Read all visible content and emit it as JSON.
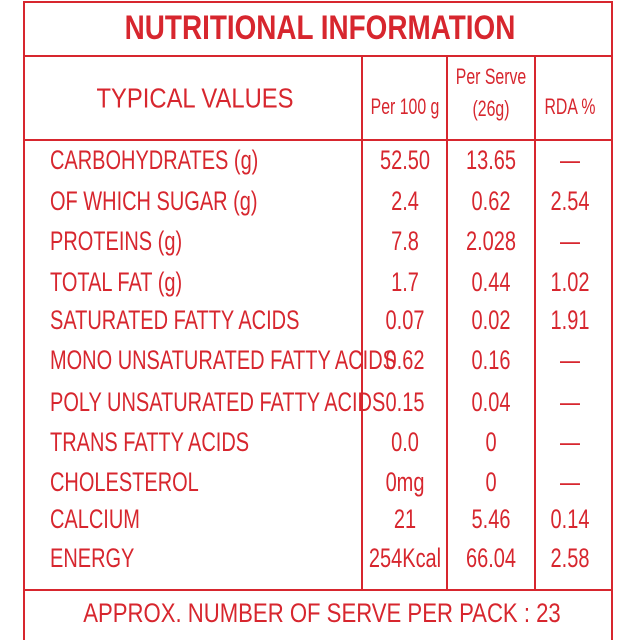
{
  "title": "NUTRITIONAL INFORMATION",
  "header": {
    "typical_values": "TYPICAL VALUES",
    "per_100g": "Per 100 g",
    "per_serve": [
      "Per Serve",
      "(26g)"
    ],
    "rda": "RDA %"
  },
  "rows": [
    [
      "CARBOHYDRATES (g)",
      "52.50",
      "13.65",
      "—"
    ],
    [
      "OF WHICH SUGAR (g)",
      "2.4",
      "0.62",
      "2.54"
    ],
    [
      "PROTEINS (g)",
      "7.8",
      "2.028",
      "—"
    ],
    [
      "TOTAL FAT (g)",
      "1.7",
      "0.44",
      "1.02"
    ],
    [
      "SATURATED FATTY ACIDS",
      "0.07",
      "0.02",
      "1.91"
    ],
    [
      "MONO UNSATURATED FATTY ACIDS",
      "0.62",
      "0.16",
      "—"
    ],
    [
      "POLY UNSATURATED FATTY ACIDS",
      "0.15",
      "0.04",
      "—"
    ],
    [
      "TRANS FATTY ACIDS",
      "0.0",
      "0",
      "—"
    ],
    [
      "CHOLESTEROL",
      "0mg",
      "0",
      "—"
    ],
    [
      "CALCIUM",
      "21",
      "5.46",
      "0.14"
    ],
    [
      "ENERGY",
      "254Kcal",
      "66.04",
      "2.58"
    ]
  ],
  "footer": "APPROX. NUMBER OF SERVE PER PACK : 23"
}
